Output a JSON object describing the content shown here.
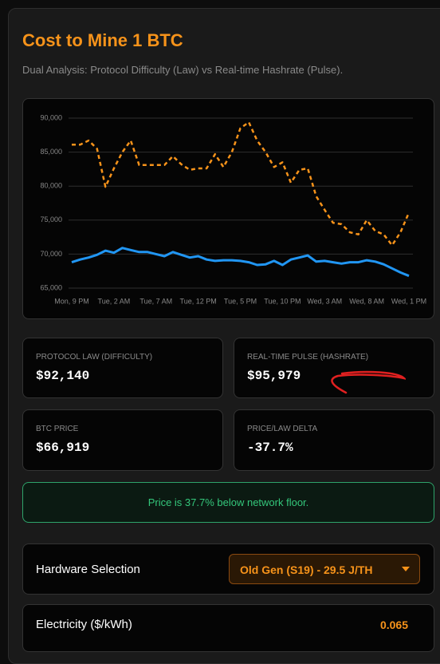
{
  "header": {
    "title": "Cost to Mine 1 BTC",
    "subtitle": "Dual Analysis: Protocol Difficulty (Law) vs Real-time Hashrate (Pulse)."
  },
  "chart_data": {
    "type": "line",
    "categories": [
      "Mon, 9 PM",
      null,
      null,
      null,
      null,
      "Tue, 2 AM",
      null,
      null,
      null,
      null,
      "Tue, 7 AM",
      null,
      null,
      null,
      null,
      "Tue, 12 PM",
      null,
      null,
      null,
      null,
      "Tue, 5 PM",
      null,
      null,
      null,
      null,
      "Tue, 10 PM",
      null,
      null,
      null,
      null,
      "Wed, 3 AM",
      null,
      null,
      null,
      null,
      "Wed, 8 AM",
      null,
      null,
      null,
      null,
      "Wed, 1 PM"
    ],
    "series": [
      {
        "color": "#f7931a",
        "dashed": true,
        "values": [
          86100,
          86100,
          86700,
          85500,
          79900,
          82600,
          85000,
          86700,
          83100,
          83100,
          83100,
          83100,
          84400,
          83200,
          82400,
          82600,
          82600,
          84700,
          82800,
          85000,
          88500,
          89400,
          86700,
          85000,
          82800,
          83500,
          80500,
          82400,
          82600,
          78500,
          76500,
          74600,
          74400,
          73200,
          72900,
          75000,
          73400,
          72900,
          71300,
          73200,
          76100
        ]
      },
      {
        "color": "#2196f3",
        "dashed": false,
        "values": [
          68800,
          69200,
          69500,
          69900,
          70500,
          70200,
          70900,
          70600,
          70300,
          70300,
          70000,
          69700,
          70300,
          69900,
          69500,
          69700,
          69200,
          69000,
          69100,
          69100,
          69000,
          68800,
          68400,
          68500,
          69000,
          68400,
          69200,
          69500,
          69800,
          68900,
          69000,
          68800,
          68600,
          68800,
          68800,
          69100,
          68900,
          68500,
          67900,
          67300,
          66800
        ]
      }
    ],
    "ylim": [
      65000,
      90000
    ],
    "yticks": [
      {
        "value": 65000,
        "label": "65,000"
      },
      {
        "value": 70000,
        "label": "70,000"
      },
      {
        "value": 75000,
        "label": "75,000"
      },
      {
        "value": 80000,
        "label": "80,000"
      },
      {
        "value": 85000,
        "label": "85,000"
      },
      {
        "value": 90000,
        "label": "90,000"
      }
    ],
    "grid": true
  },
  "cards": [
    {
      "label": "PROTOCOL LAW (DIFFICULTY)",
      "value": "$92,140"
    },
    {
      "label": "REAL-TIME PULSE (HASHRATE)",
      "value": "$95,979"
    },
    {
      "label": "BTC PRICE",
      "value": "$66,919"
    },
    {
      "label": "PRICE/LAW DELTA",
      "value": "-37.7%"
    }
  ],
  "message": "Price is 37.7% below network floor.",
  "controls": {
    "hardware": {
      "label": "Hardware Selection",
      "value": "Old Gen (S19) - 29.5 J/TH"
    },
    "electricity": {
      "label": "Electricity ($/kWh)",
      "value": "0.065"
    }
  }
}
